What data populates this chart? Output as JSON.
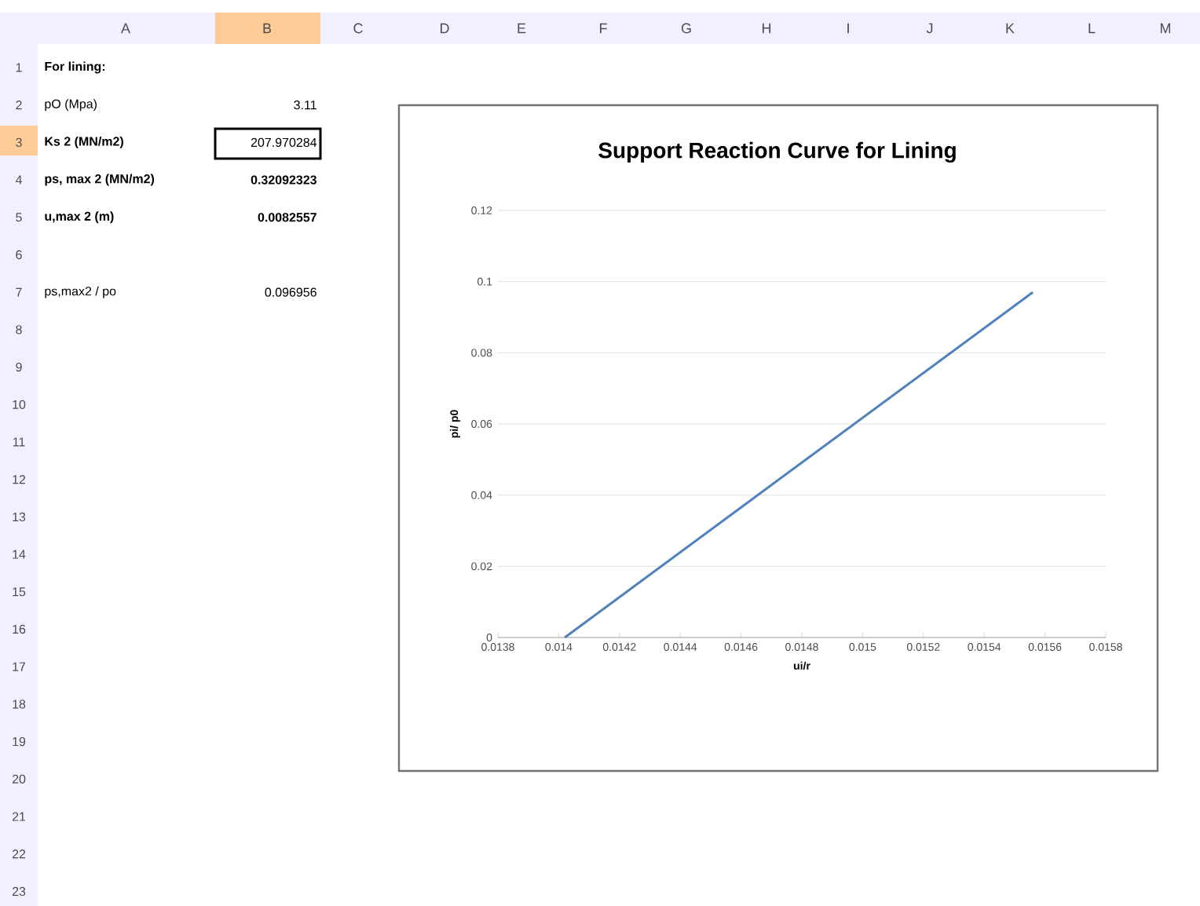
{
  "chart_data": {
    "type": "line",
    "title": "Support Reaction Curve for Lining",
    "xlabel": "ui/r",
    "ylabel": "pi/ p0",
    "x": [
      0.01402,
      0.01556
    ],
    "series": [
      {
        "color": "#4f81bd",
        "values": [
          0,
          0.097
        ]
      }
    ],
    "xlim": [
      0.0138,
      0.0158
    ],
    "xticks": [
      0.0138,
      0.014,
      0.0142,
      0.0144,
      0.0146,
      0.0148,
      0.015,
      0.0152,
      0.0154,
      0.0156,
      0.0158
    ],
    "ylim": [
      0,
      0.12
    ],
    "yticks": [
      0,
      0.02,
      0.04,
      0.06,
      0.08,
      0.1,
      0.12
    ],
    "grid": "y",
    "marker": "none",
    "line_style": "solid",
    "annotations": [
      "A",
      "B",
      "C",
      "D",
      "E",
      "F",
      "G",
      "H",
      "I",
      "J",
      "K",
      "L",
      "M",
      "1",
      "2",
      "3",
      "4",
      "5",
      "6",
      "7",
      "8",
      "9",
      "10",
      "11",
      "12",
      "13",
      "14",
      "15",
      "16",
      "17",
      "18",
      "19",
      "20",
      "21",
      "22",
      "23",
      "For lining:",
      "pO (Mpa)",
      "3.11",
      "Ks 2 (MN/m2)",
      "207.970284",
      "ps, max 2 (MN/m2)",
      "0.32092323",
      "u,max 2 (m)",
      "0.0082557",
      "ps,max2 / po",
      "0.096956"
    ]
  }
}
